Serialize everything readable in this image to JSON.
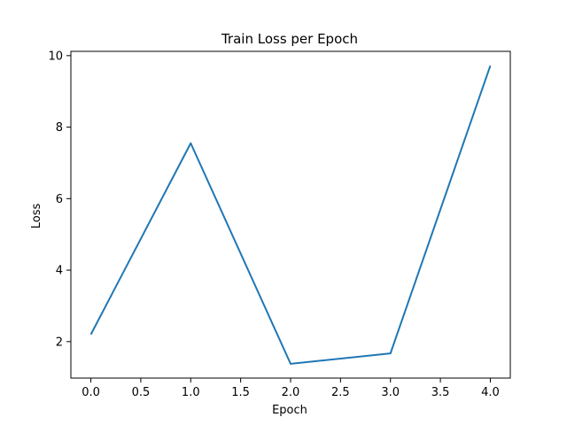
{
  "chart_data": {
    "type": "line",
    "title": "Train Loss per Epoch",
    "xlabel": "Epoch",
    "ylabel": "Loss",
    "x": [
      0,
      1,
      2,
      3,
      4
    ],
    "series": [
      {
        "values": [
          2.2,
          7.55,
          1.38,
          1.67,
          9.72
        ],
        "color": "#1f77b4"
      }
    ],
    "xlim": [
      -0.2,
      4.2
    ],
    "ylim": [
      0.98,
      10.12
    ],
    "xticks": [
      0,
      0.5,
      1,
      1.5,
      2,
      2.5,
      3,
      3.5,
      4
    ],
    "xtick_labels": [
      "0.0",
      "0.5",
      "1.0",
      "1.5",
      "2.0",
      "2.5",
      "3.0",
      "3.5",
      "4.0"
    ],
    "yticks": [
      2,
      4,
      6,
      8,
      10
    ],
    "ytick_labels": [
      "2",
      "4",
      "6",
      "8",
      "10"
    ],
    "grid": false,
    "legend": "none"
  }
}
